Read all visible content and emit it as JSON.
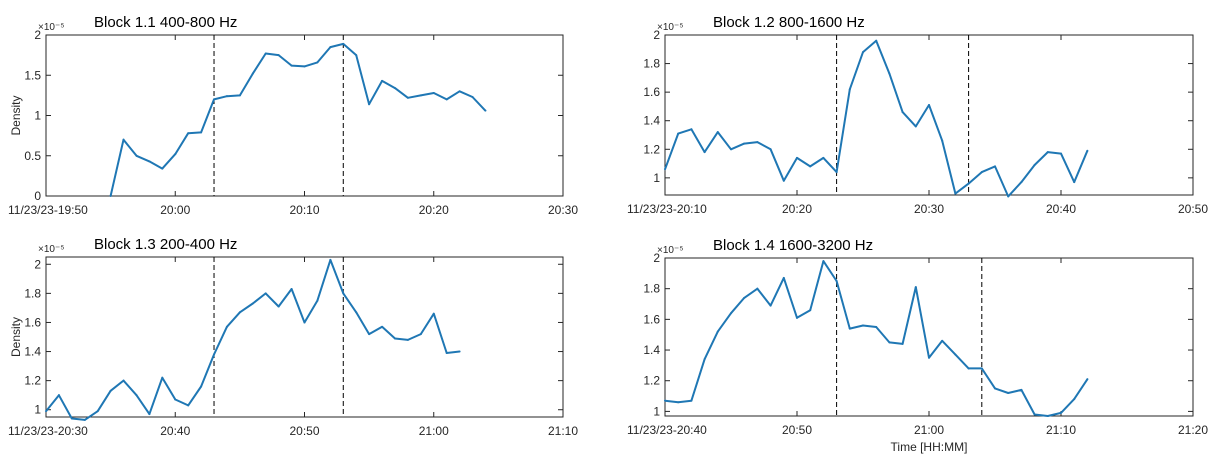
{
  "chart_data": [
    {
      "type": "line",
      "title": "Block 1.1 400-800 Hz",
      "exponent_label": "×10⁻⁵",
      "ylabel": "Density",
      "xlabel": "",
      "x_tick_labels": [
        "11/23/23-19:50",
        "20:00",
        "20:10",
        "20:20",
        "20:30"
      ],
      "y_ticks": [
        0,
        0.5,
        1,
        1.5,
        2
      ],
      "y_tick_labels": [
        "0",
        "0.5",
        "1",
        "1.5",
        "2"
      ],
      "xlim_minutes": [
        0,
        40
      ],
      "ylim": [
        0,
        2
      ],
      "events_minutes": [
        13,
        23
      ],
      "series": [
        {
          "color": "#1f77b4",
          "x_minutes": [
            5,
            6,
            7,
            8,
            9,
            10,
            11,
            12,
            13,
            14,
            15,
            16,
            17,
            18,
            19,
            20,
            21,
            22,
            23,
            24,
            25,
            26,
            27,
            28,
            29,
            30,
            31,
            32,
            33,
            34
          ],
          "values": [
            0,
            0.7,
            0.5,
            0.43,
            0.34,
            0.52,
            0.78,
            0.79,
            1.2,
            1.24,
            1.25,
            1.52,
            1.77,
            1.75,
            1.62,
            1.61,
            1.66,
            1.85,
            1.89,
            1.75,
            1.14,
            1.43,
            1.34,
            1.22,
            1.25,
            1.28,
            1.2,
            1.3,
            1.23,
            1.06
          ]
        }
      ]
    },
    {
      "type": "line",
      "title": "Block 1.2 800-1600 Hz",
      "exponent_label": "×10⁻⁵",
      "ylabel": "",
      "xlabel": "",
      "x_tick_labels": [
        "11/23/23-20:10",
        "20:20",
        "20:30",
        "20:40",
        "20:50"
      ],
      "y_ticks": [
        1,
        1.2,
        1.4,
        1.6,
        1.8,
        2
      ],
      "y_tick_labels": [
        "1",
        "1.2",
        "1.4",
        "1.6",
        "1.8",
        "2"
      ],
      "xlim_minutes": [
        0,
        40
      ],
      "ylim": [
        0.88,
        2
      ],
      "events_minutes": [
        13,
        23
      ],
      "series": [
        {
          "color": "#1f77b4",
          "x_minutes": [
            0,
            1,
            2,
            3,
            4,
            5,
            6,
            7,
            8,
            9,
            10,
            11,
            12,
            13,
            14,
            15,
            16,
            17,
            18,
            19,
            20,
            21,
            22,
            23,
            24,
            25,
            26,
            27,
            28,
            29,
            30,
            31,
            32
          ],
          "values": [
            1.06,
            1.31,
            1.34,
            1.18,
            1.32,
            1.2,
            1.24,
            1.25,
            1.2,
            0.98,
            1.14,
            1.08,
            1.14,
            1.04,
            1.62,
            1.88,
            1.96,
            1.73,
            1.46,
            1.36,
            1.51,
            1.26,
            0.89,
            0.96,
            1.04,
            1.08,
            0.87,
            0.97,
            1.09,
            1.18,
            1.17,
            0.97,
            1.19
          ]
        }
      ]
    },
    {
      "type": "line",
      "title": "Block 1.3 200-400 Hz",
      "exponent_label": "×10⁻⁵",
      "ylabel": "Density",
      "xlabel": "",
      "x_tick_labels": [
        "11/23/23-20:30",
        "20:40",
        "20:50",
        "21:00",
        "21:10"
      ],
      "y_ticks": [
        1,
        1.2,
        1.4,
        1.6,
        1.8,
        2
      ],
      "y_tick_labels": [
        "1",
        "1.2",
        "1.4",
        "1.6",
        "1.8",
        "2"
      ],
      "xlim_minutes": [
        0,
        40
      ],
      "ylim": [
        0.95,
        2.05
      ],
      "events_minutes": [
        13,
        23
      ],
      "series": [
        {
          "color": "#1f77b4",
          "x_minutes": [
            0,
            1,
            2,
            3,
            4,
            5,
            6,
            7,
            8,
            9,
            10,
            11,
            12,
            13,
            14,
            15,
            16,
            17,
            18,
            19,
            20,
            21,
            22,
            23,
            24,
            25,
            26,
            27,
            28,
            29,
            30,
            31,
            32
          ],
          "values": [
            0.99,
            1.1,
            0.94,
            0.93,
            0.99,
            1.13,
            1.2,
            1.1,
            0.97,
            1.22,
            1.07,
            1.03,
            1.16,
            1.38,
            1.57,
            1.67,
            1.73,
            1.8,
            1.71,
            1.83,
            1.6,
            1.75,
            2.03,
            1.8,
            1.67,
            1.52,
            1.57,
            1.49,
            1.48,
            1.52,
            1.66,
            1.39,
            1.4
          ]
        }
      ]
    },
    {
      "type": "line",
      "title": "Block 1.4 1600-3200 Hz",
      "exponent_label": "×10⁻⁵",
      "ylabel": "",
      "xlabel": "Time [HH:MM]",
      "x_tick_labels": [
        "11/23/23-20:40",
        "20:50",
        "21:00",
        "21:10",
        "21:20"
      ],
      "y_ticks": [
        1,
        1.2,
        1.4,
        1.6,
        1.8,
        2
      ],
      "y_tick_labels": [
        "1",
        "1.2",
        "1.4",
        "1.6",
        "1.8",
        "2"
      ],
      "xlim_minutes": [
        0,
        40
      ],
      "ylim": [
        0.97,
        2
      ],
      "events_minutes": [
        13,
        24
      ],
      "series": [
        {
          "color": "#1f77b4",
          "x_minutes": [
            0,
            1,
            2,
            3,
            4,
            5,
            6,
            7,
            8,
            9,
            10,
            11,
            12,
            13,
            14,
            15,
            16,
            17,
            18,
            19,
            20,
            21,
            22,
            23,
            24,
            25,
            26,
            27,
            28,
            29,
            30,
            31,
            32
          ],
          "values": [
            1.07,
            1.06,
            1.07,
            1.34,
            1.52,
            1.64,
            1.74,
            1.8,
            1.69,
            1.87,
            1.61,
            1.66,
            1.98,
            1.85,
            1.54,
            1.56,
            1.55,
            1.45,
            1.44,
            1.81,
            1.35,
            1.46,
            1.37,
            1.28,
            1.28,
            1.15,
            1.12,
            1.14,
            0.98,
            0.97,
            0.99,
            1.08,
            1.21
          ]
        }
      ]
    }
  ]
}
